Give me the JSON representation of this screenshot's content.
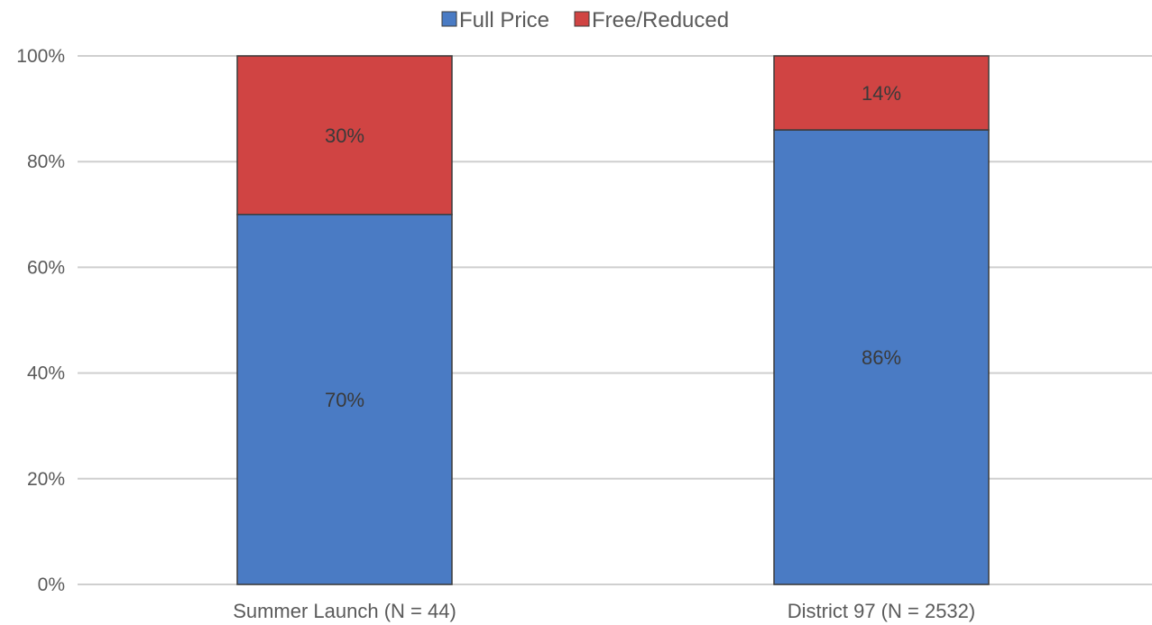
{
  "chart_data": {
    "type": "bar",
    "stacked": true,
    "percent": true,
    "title": "",
    "xlabel": "",
    "ylabel": "",
    "ylim": [
      0,
      100
    ],
    "yticks": [
      "0%",
      "20%",
      "40%",
      "60%",
      "80%",
      "100%"
    ],
    "ytick_values": [
      0,
      20,
      40,
      60,
      80,
      100
    ],
    "grid": true,
    "legend_position": "top-center",
    "categories": [
      "Summer Launch (N = 44)",
      "District 97 (N = 2532)"
    ],
    "series": [
      {
        "name": "Full Price",
        "color": "#4a7bc4",
        "values": [
          70,
          86
        ],
        "labels": [
          "70%",
          "86%"
        ]
      },
      {
        "name": "Free/Reduced",
        "color": "#d04443",
        "values": [
          30,
          14
        ],
        "labels": [
          "30%",
          "14%"
        ]
      }
    ]
  }
}
